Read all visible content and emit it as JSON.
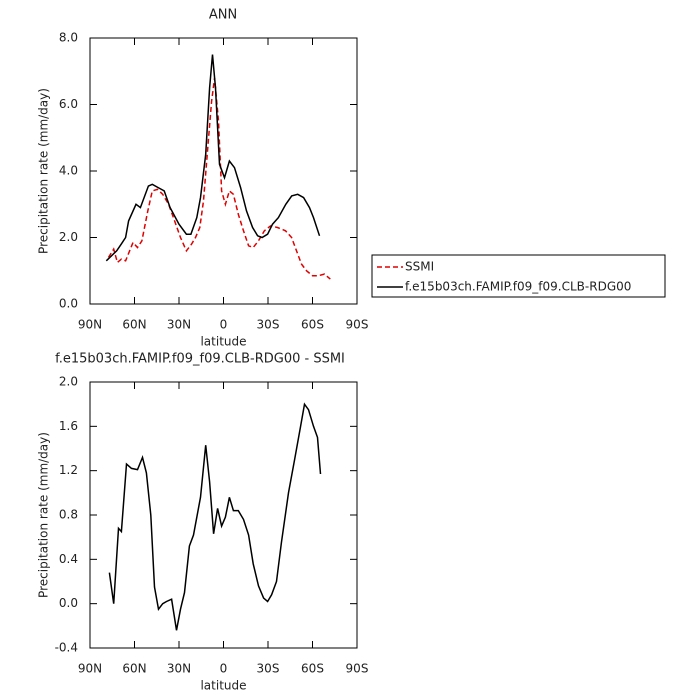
{
  "chart_data": [
    {
      "type": "line",
      "title": "ANN",
      "xlabel": "latitude",
      "ylabel": "Precipitation rate (mm/day)",
      "xlim": [
        90,
        -90
      ],
      "xticks": [
        {
          "value": 90,
          "label": "90N"
        },
        {
          "value": 60,
          "label": "60N"
        },
        {
          "value": 30,
          "label": "30N"
        },
        {
          "value": 0,
          "label": "0"
        },
        {
          "value": -30,
          "label": "30S"
        },
        {
          "value": -60,
          "label": "60S"
        },
        {
          "value": -90,
          "label": "90S"
        }
      ],
      "ylim": [
        0,
        8
      ],
      "yticks": [
        {
          "value": 0,
          "label": "0.0"
        },
        {
          "value": 2,
          "label": "2.0"
        },
        {
          "value": 4,
          "label": "4.0"
        },
        {
          "value": 6,
          "label": "6.0"
        },
        {
          "value": 8,
          "label": "8.0"
        }
      ],
      "legend": "right",
      "series": [
        {
          "name": "SSMI",
          "color": "#e00000",
          "dashed": true,
          "x": [
            77.5,
            74,
            71.5,
            68.8,
            66,
            61,
            58,
            55,
            51,
            48,
            44.5,
            41,
            37,
            33,
            29,
            25,
            21.6,
            18.9,
            16,
            13.5,
            10.8,
            8,
            6,
            3.4,
            1.3,
            -1.3,
            -4,
            -6.7,
            -10,
            -13.5,
            -16.9,
            -20,
            -23.6,
            -27.6,
            -31.7,
            -36.4,
            -41.8,
            -45.9,
            -49.2,
            -52.6,
            -56,
            -60,
            -64,
            -68,
            -72
          ],
          "values": [
            1.4,
            1.65,
            1.25,
            1.35,
            1.3,
            1.85,
            1.7,
            1.9,
            2.8,
            3.4,
            3.45,
            3.3,
            3.0,
            2.5,
            2.0,
            1.6,
            1.8,
            2.0,
            2.3,
            3.1,
            4.6,
            6.1,
            6.8,
            5.5,
            3.4,
            3.0,
            3.4,
            3.3,
            2.7,
            2.2,
            1.75,
            1.7,
            1.9,
            2.2,
            2.35,
            2.3,
            2.2,
            2.0,
            1.6,
            1.2,
            1.0,
            0.85,
            0.85,
            0.9,
            0.75
          ]
        },
        {
          "name": "f.e15b03ch.FAMIP.f09_f09.CLB-RDG00",
          "color": "#000000",
          "dashed": false,
          "x": [
            79,
            72,
            69,
            66,
            64,
            59,
            56,
            50.6,
            48,
            44,
            40,
            36,
            30,
            25,
            22,
            18,
            15.5,
            12,
            9.4,
            7.4,
            5.4,
            2.7,
            -0.7,
            -4,
            -7.4,
            -11.5,
            -15.5,
            -19.6,
            -23,
            -26,
            -29.7,
            -33,
            -37,
            -42,
            -46,
            -50,
            -54,
            -58,
            -60.7,
            -64.7
          ],
          "values": [
            1.3,
            1.6,
            1.8,
            2.0,
            2.5,
            3.0,
            2.9,
            3.55,
            3.6,
            3.5,
            3.4,
            2.9,
            2.4,
            2.1,
            2.1,
            2.6,
            3.2,
            4.5,
            6.5,
            7.5,
            6.5,
            4.2,
            3.8,
            4.3,
            4.1,
            3.5,
            2.8,
            2.3,
            2.05,
            2.0,
            2.1,
            2.4,
            2.6,
            3.0,
            3.25,
            3.3,
            3.2,
            2.9,
            2.6,
            2.05
          ]
        }
      ]
    },
    {
      "type": "line",
      "title": "f.e15b03ch.FAMIP.f09_f09.CLB-RDG00 - SSMI",
      "xlabel": "latitude",
      "ylabel": "Precipitation rate (mm/day)",
      "xlim": [
        90,
        -90
      ],
      "xticks": [
        {
          "value": 90,
          "label": "90N"
        },
        {
          "value": 60,
          "label": "60N"
        },
        {
          "value": 30,
          "label": "30N"
        },
        {
          "value": 0,
          "label": "0"
        },
        {
          "value": -30,
          "label": "30S"
        },
        {
          "value": -60,
          "label": "60S"
        },
        {
          "value": -90,
          "label": "90S"
        }
      ],
      "ylim": [
        -0.4,
        2.0
      ],
      "yticks": [
        {
          "value": -0.4,
          "label": "-0.4"
        },
        {
          "value": 0,
          "label": "0.0"
        },
        {
          "value": 0.4,
          "label": "0.4"
        },
        {
          "value": 0.8,
          "label": "0.8"
        },
        {
          "value": 1.2,
          "label": "1.2"
        },
        {
          "value": 1.6,
          "label": "1.6"
        },
        {
          "value": 2.0,
          "label": "2.0"
        }
      ],
      "series": [
        {
          "color": "#000000",
          "dashed": false,
          "x": [
            76.9,
            74,
            70.8,
            68.8,
            65.4,
            62,
            58,
            54.6,
            52,
            49,
            46.5,
            43.8,
            41,
            38.4,
            35,
            31.7,
            29,
            26.3,
            23,
            20.2,
            15.5,
            12,
            9.4,
            6.7,
            4,
            1.3,
            -1.3,
            -4,
            -6.7,
            -10,
            -13.5,
            -16.9,
            -20,
            -23.6,
            -27,
            -29.7,
            -32.4,
            -35.7,
            -39,
            -43.8,
            -47.9,
            -52,
            -54.6,
            -57.3,
            -60.7,
            -63.4,
            -65.4
          ],
          "values": [
            0.28,
            0.0,
            0.68,
            0.65,
            1.26,
            1.22,
            1.21,
            1.32,
            1.18,
            0.8,
            0.15,
            -0.05,
            0.0,
            0.02,
            0.04,
            -0.24,
            -0.05,
            0.1,
            0.52,
            0.62,
            0.96,
            1.43,
            1.1,
            0.63,
            0.86,
            0.7,
            0.78,
            0.96,
            0.84,
            0.84,
            0.76,
            0.62,
            0.36,
            0.16,
            0.05,
            0.02,
            0.08,
            0.2,
            0.55,
            1.0,
            1.3,
            1.6,
            1.8,
            1.75,
            1.6,
            1.5,
            1.17
          ]
        }
      ]
    }
  ]
}
